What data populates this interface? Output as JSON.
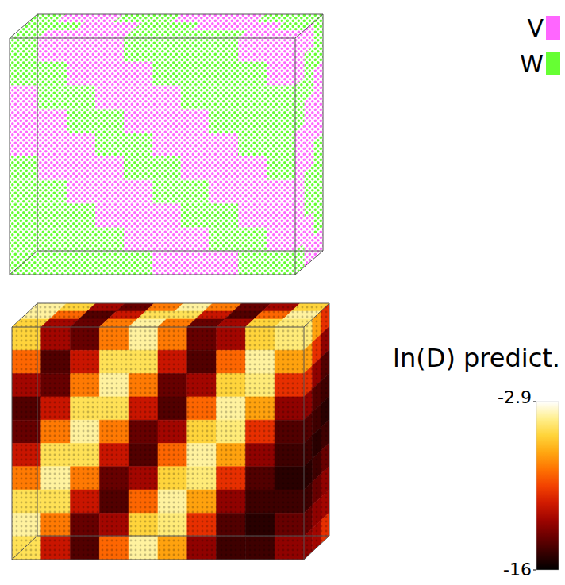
{
  "chart_data": [
    {
      "type": "cube",
      "legend": "top-right",
      "series": [
        {
          "name": "V",
          "color": "#ff66ff"
        },
        {
          "name": "W",
          "color": "#66ff33"
        }
      ],
      "faces": {
        "front": [
          [
            "W",
            "V",
            "V",
            "V",
            "W",
            "W",
            "W",
            "W",
            "V",
            "V"
          ],
          [
            "W",
            "W",
            "V",
            "V",
            "V",
            "W",
            "W",
            "W",
            "W",
            "V"
          ],
          [
            "V",
            "W",
            "W",
            "V",
            "V",
            "V",
            "W",
            "W",
            "W",
            "W"
          ],
          [
            "V",
            "V",
            "W",
            "W",
            "V",
            "V",
            "V",
            "W",
            "W",
            "W"
          ],
          [
            "V",
            "V",
            "V",
            "W",
            "W",
            "V",
            "V",
            "V",
            "W",
            "W"
          ],
          [
            "W",
            "V",
            "V",
            "V",
            "W",
            "W",
            "V",
            "V",
            "V",
            "W"
          ],
          [
            "W",
            "W",
            "V",
            "V",
            "V",
            "W",
            "W",
            "V",
            "V",
            "V"
          ],
          [
            "W",
            "W",
            "W",
            "V",
            "V",
            "V",
            "W",
            "W",
            "V",
            "V"
          ],
          [
            "W",
            "W",
            "W",
            "W",
            "V",
            "V",
            "V",
            "W",
            "W",
            "V"
          ],
          [
            "W",
            "W",
            "W",
            "W",
            "W",
            "V",
            "V",
            "V",
            "W",
            "W"
          ]
        ],
        "top": [
          [
            "W",
            "V",
            "V",
            "W",
            "W",
            "V",
            "V",
            "V",
            "W",
            "W"
          ],
          [
            "W",
            "W",
            "V",
            "V",
            "W",
            "W",
            "V",
            "V",
            "V",
            "W"
          ],
          [
            "W",
            "V",
            "V",
            "V",
            "W",
            "W",
            "W",
            "W",
            "V",
            "V"
          ]
        ],
        "side": [
          [
            "V",
            "V",
            "W"
          ],
          [
            "V",
            "W",
            "W"
          ],
          [
            "W",
            "W",
            "V"
          ],
          [
            "W",
            "V",
            "V"
          ],
          [
            "V",
            "V",
            "V"
          ],
          [
            "V",
            "V",
            "W"
          ],
          [
            "V",
            "W",
            "W"
          ],
          [
            "V",
            "W",
            "W"
          ],
          [
            "V",
            "V",
            "W"
          ],
          [
            "W",
            "V",
            "V"
          ]
        ]
      }
    },
    {
      "type": "cube",
      "colorbar": {
        "label": "ln(D) predict.",
        "range": [
          -16,
          -2.9
        ],
        "ticks": [
          -2.9,
          -16
        ]
      },
      "faces": {
        "front": [
          [
            -5.5,
            -12,
            -13.5,
            -8,
            -4,
            -8,
            -13.5,
            -12,
            -5.5,
            -4.5
          ],
          [
            -8.5,
            -14,
            -11,
            -5,
            -5,
            -11,
            -14,
            -8.5,
            -4,
            -7
          ],
          [
            -12,
            -13.5,
            -8,
            -4,
            -8,
            -13.5,
            -12,
            -5.5,
            -4.5,
            -10
          ],
          [
            -14,
            -11,
            -5,
            -5,
            -11,
            -14,
            -8.5,
            -4,
            -7,
            -12.5
          ],
          [
            -13.5,
            -8,
            -4,
            -8,
            -13.5,
            -12,
            -5.5,
            -4.5,
            -10,
            -14
          ],
          [
            -11,
            -5,
            -5,
            -11,
            -14,
            -8.5,
            -4,
            -7,
            -12.5,
            -14.5
          ],
          [
            -8,
            -4,
            -8,
            -13.5,
            -12,
            -5.5,
            -4.5,
            -10,
            -14,
            -15
          ],
          [
            -5,
            -5,
            -11,
            -14,
            -8.5,
            -4,
            -7,
            -12.5,
            -14.5,
            -14.5
          ],
          [
            -4,
            -8,
            -13.5,
            -12,
            -5.5,
            -4.5,
            -10,
            -14,
            -15,
            -13.5
          ],
          [
            -5,
            -11,
            -14,
            -8.5,
            -4,
            -7,
            -12.5,
            -14.5,
            -14.5,
            -12.5
          ]
        ],
        "top": [
          [
            -4,
            -5.5,
            -12,
            -13.5,
            -8,
            -4,
            -8,
            -13.5,
            -12,
            -5.5
          ],
          [
            -4,
            -8.5,
            -14,
            -11,
            -5,
            -5,
            -11,
            -14,
            -8.5,
            -4
          ],
          [
            -5.5,
            -12,
            -13.5,
            -8,
            -4,
            -8,
            -13.5,
            -12,
            -5.5,
            -4.5
          ]
        ],
        "side": [
          [
            -4.5,
            -7,
            -10
          ],
          [
            -7,
            -10,
            -12.5
          ],
          [
            -10,
            -12.5,
            -14
          ],
          [
            -12.5,
            -14,
            -14.5
          ],
          [
            -14,
            -14.5,
            -15
          ],
          [
            -14.5,
            -15,
            -14.5
          ],
          [
            -15,
            -14.5,
            -13.5
          ],
          [
            -14.5,
            -13.5,
            -12.5
          ],
          [
            -13.5,
            -12.5,
            -12
          ],
          [
            -12.5,
            -12,
            -10
          ]
        ]
      }
    }
  ]
}
